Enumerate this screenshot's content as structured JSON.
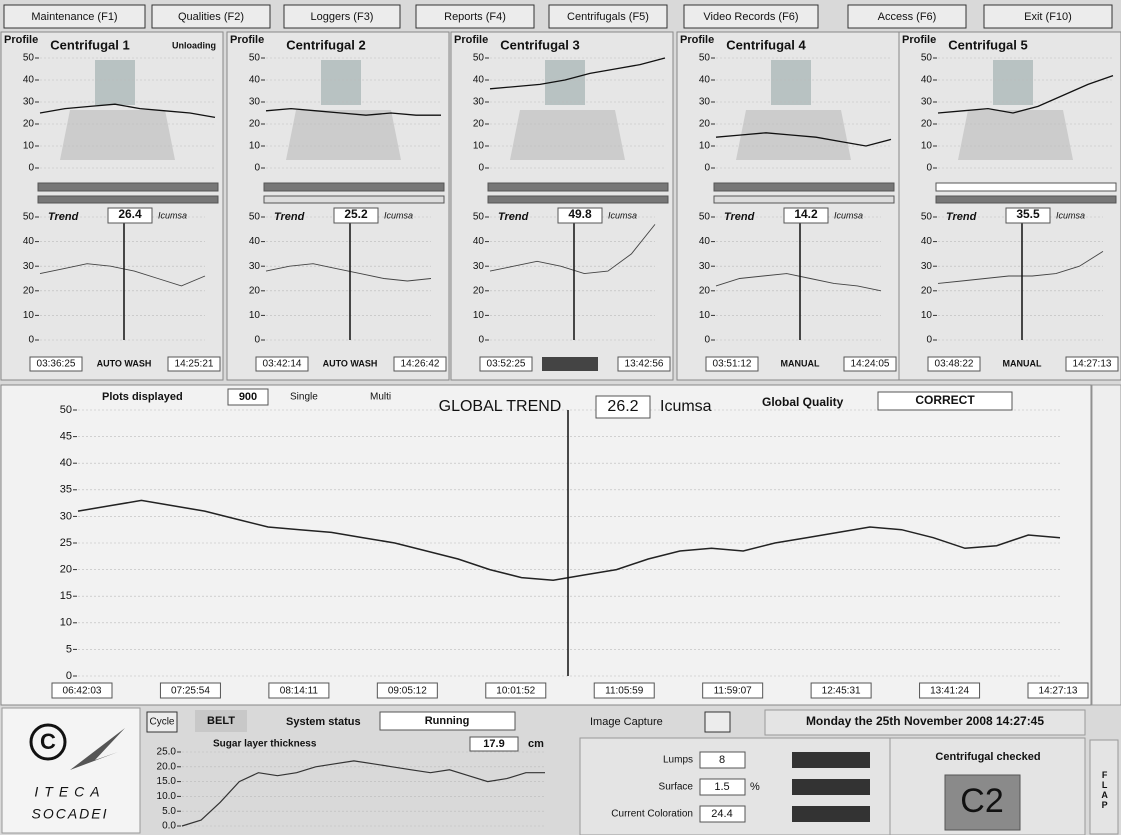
{
  "menu": [
    "Maintenance (F1)",
    "Qualities (F2)",
    "Loggers (F3)",
    "Reports (F4)",
    "Centrifugals (F5)",
    "Video Records (F6)",
    "Access (F6)",
    "Exit (F10)"
  ],
  "centrifugals": [
    {
      "profile_label": "Profile",
      "name": "Centrifugal 1",
      "status": "Unloading",
      "profile": {
        "ylim": [
          0,
          50
        ],
        "yticks": [
          0,
          10,
          20,
          30,
          40,
          50
        ],
        "values": [
          25,
          27,
          28,
          29,
          27,
          26,
          25,
          23
        ]
      },
      "trend": {
        "label": "Trend",
        "value": "26.4",
        "unit": "Icumsa",
        "ylim": [
          0,
          50
        ],
        "yticks": [
          0,
          10,
          20,
          30,
          40,
          50
        ],
        "values": [
          27,
          29,
          31,
          30,
          28,
          25,
          22,
          26
        ]
      },
      "start_time": "03:36:25",
      "mode": "AUTO WASH",
      "end_time": "14:25:21"
    },
    {
      "profile_label": "Profile",
      "name": "Centrifugal 2",
      "profile": {
        "ylim": [
          0,
          50
        ],
        "yticks": [
          0,
          10,
          20,
          30,
          40,
          50
        ],
        "values": [
          26,
          27,
          26,
          25,
          24,
          25,
          24,
          24
        ]
      },
      "trend": {
        "label": "Trend",
        "value": "25.2",
        "unit": "Icumsa",
        "ylim": [
          0,
          50
        ],
        "yticks": [
          0,
          10,
          20,
          30,
          40,
          50
        ],
        "values": [
          28,
          30,
          31,
          29,
          27,
          25,
          24,
          25
        ]
      },
      "start_time": "03:42:14",
      "mode": "AUTO WASH",
      "end_time": "14:26:42"
    },
    {
      "profile_label": "Profile",
      "name": "Centrifugal 3",
      "profile": {
        "ylim": [
          0,
          50
        ],
        "yticks": [
          0,
          10,
          20,
          30,
          40,
          50
        ],
        "values": [
          36,
          37,
          38,
          40,
          43,
          45,
          47,
          50
        ]
      },
      "trend": {
        "label": "Trend",
        "value": "49.8",
        "unit": "Icumsa",
        "ylim": [
          0,
          50
        ],
        "yticks": [
          0,
          10,
          20,
          30,
          40,
          50
        ],
        "values": [
          28,
          30,
          32,
          30,
          27,
          28,
          35,
          47
        ]
      },
      "start_time": "03:52:25",
      "end_time": "13:42:56"
    },
    {
      "profile_label": "Profile",
      "name": "Centrifugal 4",
      "profile": {
        "ylim": [
          0,
          50
        ],
        "yticks": [
          0,
          10,
          20,
          30,
          40,
          50
        ],
        "values": [
          14,
          15,
          16,
          15,
          14,
          12,
          10,
          13
        ]
      },
      "trend": {
        "label": "Trend",
        "value": "14.2",
        "unit": "Icumsa",
        "ylim": [
          0,
          50
        ],
        "yticks": [
          0,
          10,
          20,
          30,
          40,
          50
        ],
        "values": [
          22,
          25,
          26,
          27,
          25,
          23,
          22,
          20
        ]
      },
      "start_time": "03:51:12",
      "mode": "MANUAL",
      "end_time": "14:24:05"
    },
    {
      "profile_label": "Profile",
      "name": "Centrifugal 5",
      "profile": {
        "ylim": [
          0,
          50
        ],
        "yticks": [
          0,
          10,
          20,
          30,
          40,
          50
        ],
        "values": [
          25,
          26,
          27,
          25,
          28,
          33,
          38,
          42
        ]
      },
      "trend": {
        "label": "Trend",
        "value": "35.5",
        "unit": "Icumsa",
        "ylim": [
          0,
          50
        ],
        "yticks": [
          0,
          10,
          20,
          30,
          40,
          50
        ],
        "values": [
          23,
          24,
          25,
          26,
          26,
          27,
          30,
          36
        ]
      },
      "start_time": "03:48:22",
      "mode": "MANUAL",
      "end_time": "14:27:13"
    }
  ],
  "global_trend": {
    "plots_label": "Plots displayed",
    "plots": "900",
    "single": "Single",
    "multi": "Multi",
    "title": "GLOBAL TREND",
    "value": "26.2",
    "unit": "Icumsa",
    "quality_label": "Global Quality",
    "quality": "CORRECT",
    "ylim": [
      0,
      50
    ],
    "yticks": [
      0,
      5,
      10,
      15,
      20,
      25,
      30,
      35,
      40,
      45,
      50
    ],
    "times": [
      "06:42:03",
      "07:25:54",
      "08:14:11",
      "09:05:12",
      "10:01:52",
      "11:05:59",
      "11:59:07",
      "12:45:31",
      "13:41:24",
      "14:27:13"
    ],
    "values": [
      31,
      32,
      33,
      32,
      31,
      29.5,
      28,
      27.5,
      27,
      26,
      25,
      23.5,
      22,
      20,
      18.5,
      18,
      19,
      20,
      22,
      23.5,
      24,
      23.5,
      25,
      26,
      27,
      28,
      27.5,
      26,
      24,
      24.5,
      26.5,
      26
    ]
  },
  "status_bar": {
    "cycle": "Cycle",
    "belt": "BELT",
    "system_status_label": "System status",
    "system_status": "Running",
    "image_capture": "Image Capture",
    "datetime": "Monday the 25th November 2008  14:27:45"
  },
  "logo": {
    "line1": "ITECA",
    "line2": "SOCADEI"
  },
  "sugar_layer": {
    "title": "Sugar layer thickness",
    "value": "17.9",
    "unit": "cm",
    "ylim": [
      0,
      25
    ],
    "yticks": [
      {
        "value": 0,
        "label": "0.0"
      },
      {
        "value": 5,
        "label": "5.0"
      },
      {
        "value": 10,
        "label": "10.0"
      },
      {
        "value": 15,
        "label": "15.0"
      },
      {
        "value": 20,
        "label": "20.0"
      },
      {
        "value": 25,
        "label": "25.0"
      }
    ],
    "values": [
      0,
      2,
      8,
      15,
      18,
      17,
      18,
      20,
      21,
      22,
      21,
      20,
      19,
      18,
      19,
      17,
      15,
      16,
      18,
      18
    ]
  },
  "measurements": {
    "lumps_label": "Lumps",
    "lumps": "8",
    "surface_label": "Surface",
    "surface": "1.5",
    "surface_unit": "%",
    "coloration_label": "Current Coloration",
    "coloration": "24.4"
  },
  "checked": {
    "label": "Centrifugal checked",
    "id": "C2"
  },
  "flap": "FLAP"
}
